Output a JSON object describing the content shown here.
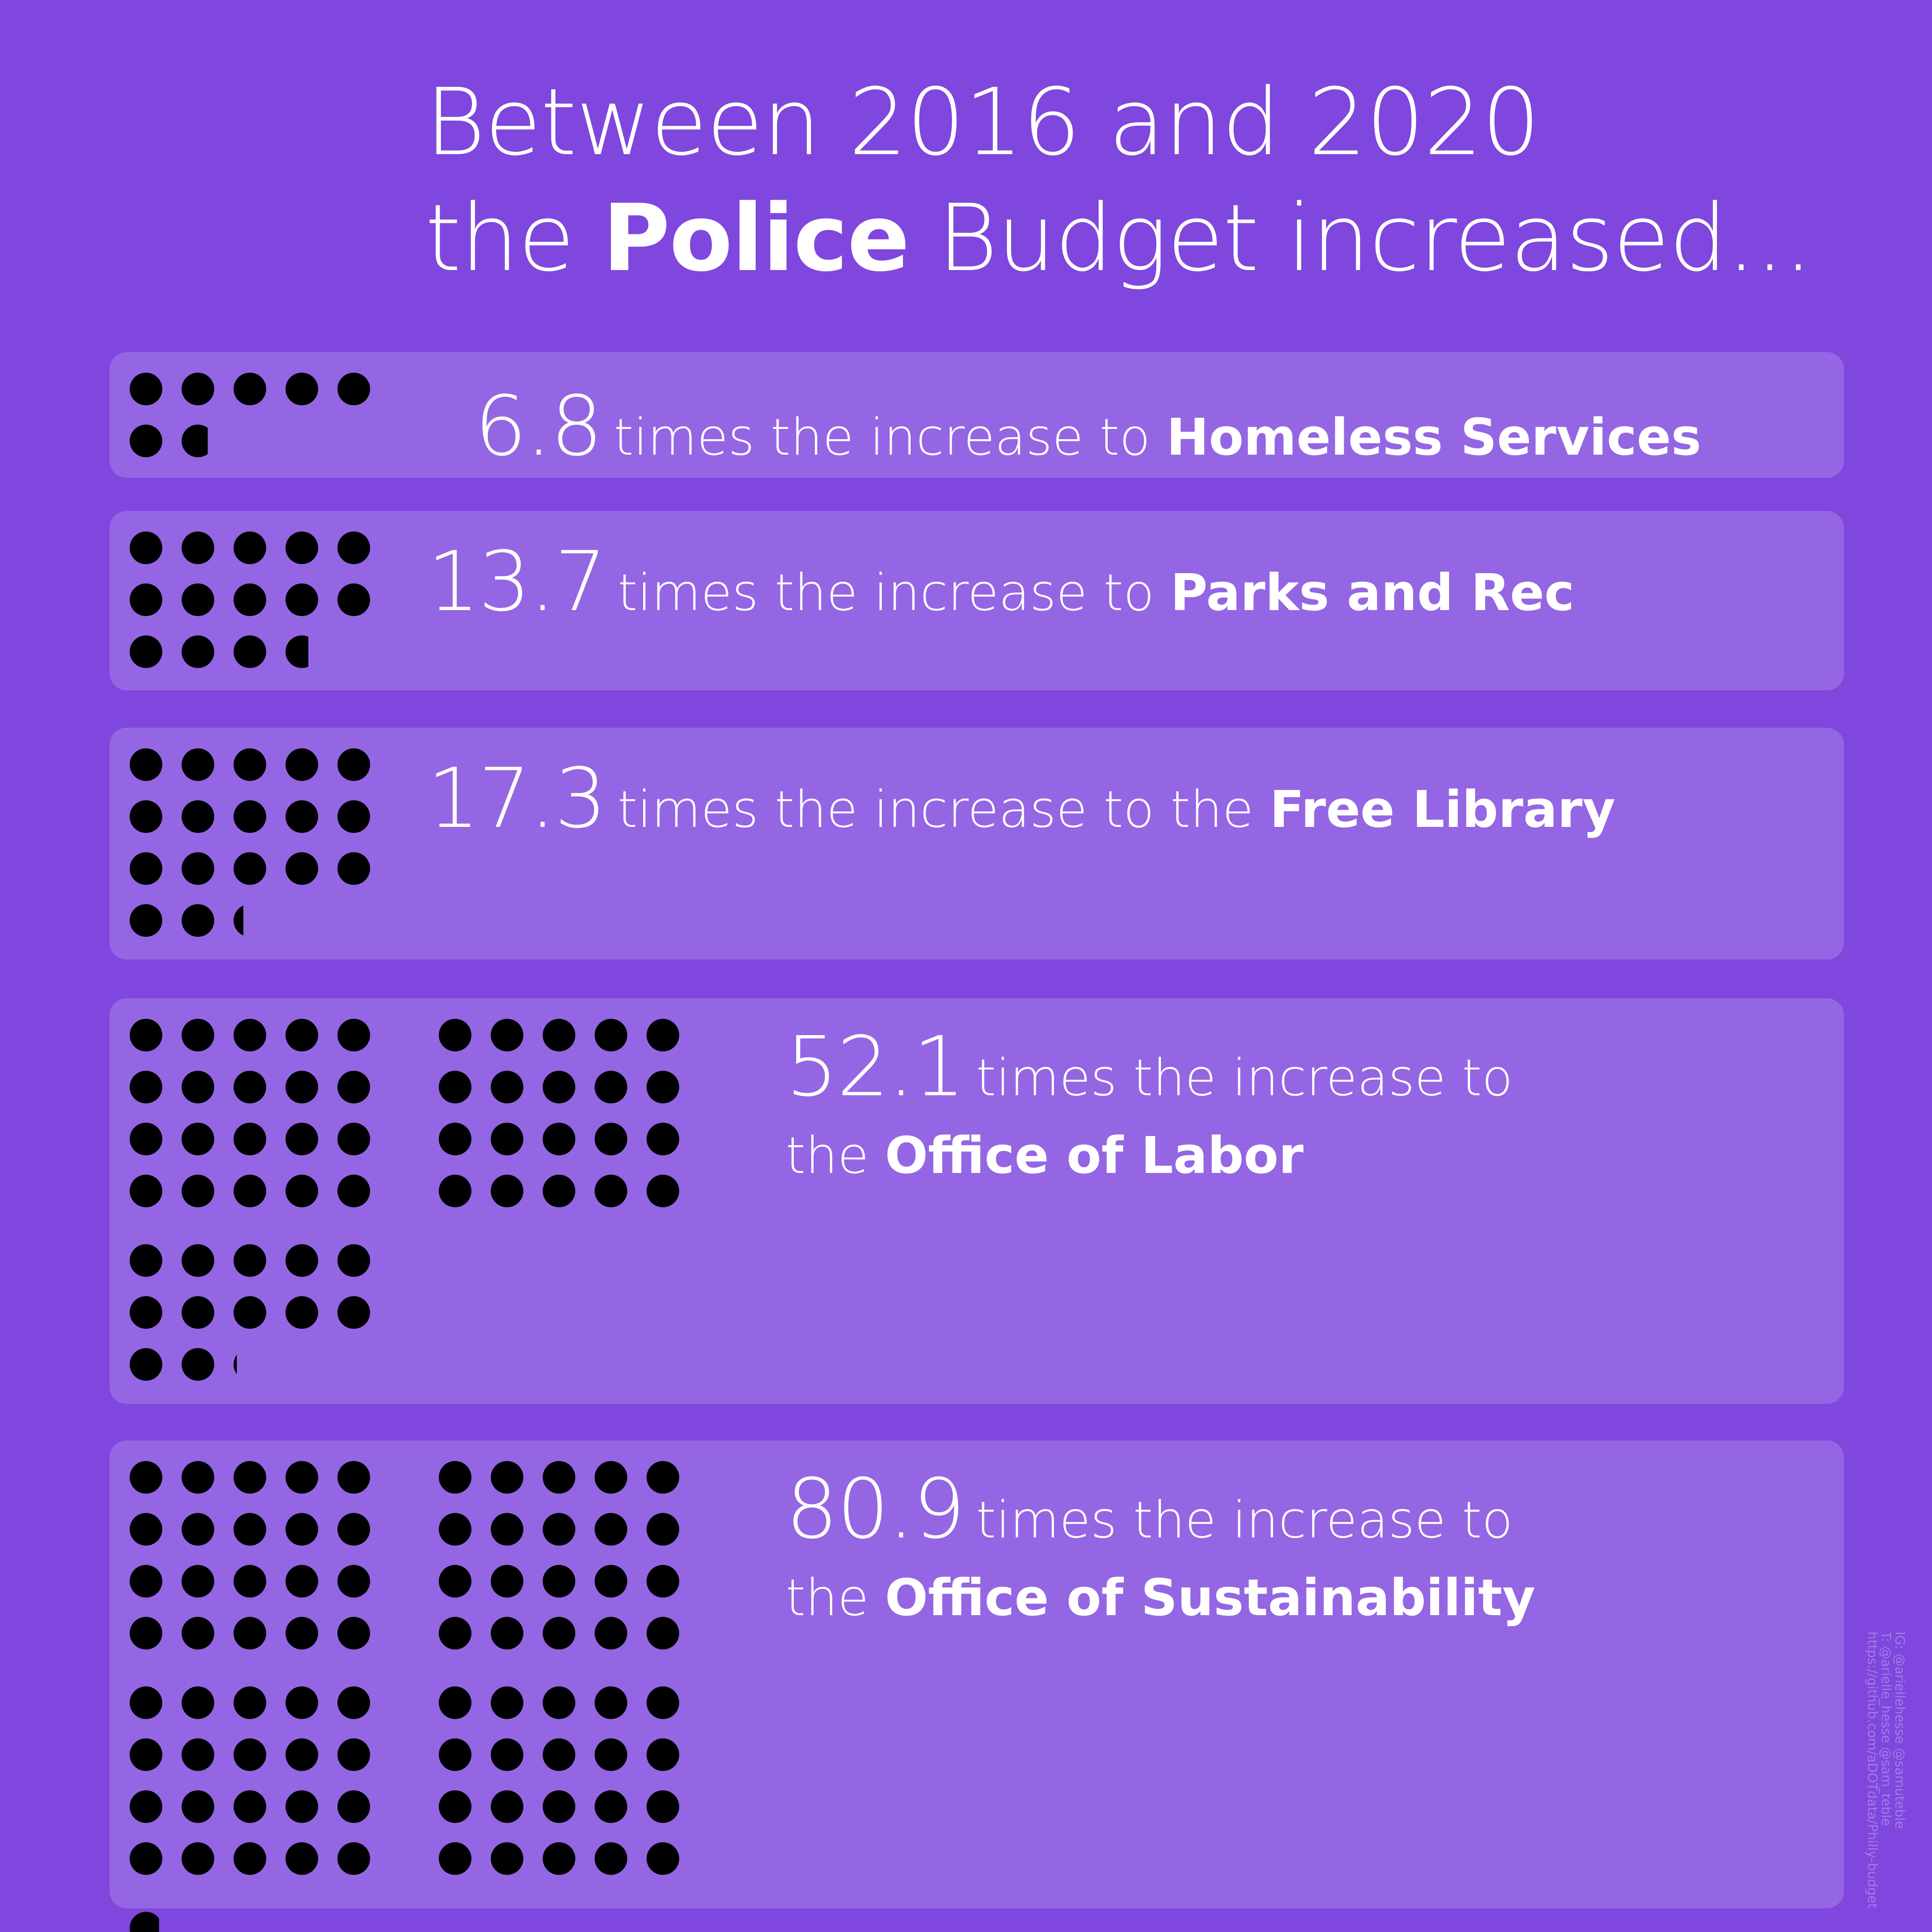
{
  "headline": {
    "line1": "Between 2016 and 2020",
    "line2_pre": "the ",
    "line2_bold": "Police",
    "line2_post": " Budget increased..."
  },
  "chart_data": {
    "type": "pictogram",
    "unit": "one dot = one times the increase",
    "dot_color": "#000000",
    "card_color": "#9466e3",
    "background_color": "#7f47dd",
    "text_color": "#ffffff",
    "rows": [
      {
        "value": 6.8,
        "number": "6.8",
        "text": "times the increase to",
        "text_suffix": "",
        "bold": "Homeless Services"
      },
      {
        "value": 13.7,
        "number": "13.7",
        "text": "times the increase to",
        "text_suffix": "",
        "bold": "Parks and Rec"
      },
      {
        "value": 17.3,
        "number": "17.3",
        "text": "times the increase to the",
        "text_suffix": "",
        "bold": "Free Library"
      },
      {
        "value": 52.1,
        "number": "52.1",
        "text": "times the increase to",
        "text_suffix": "the",
        "bold": "Office of Labor"
      },
      {
        "value": 80.9,
        "number": "80.9",
        "text": "times the increase to",
        "text_suffix": "the",
        "bold": "Office of Sustainability"
      }
    ]
  },
  "credits": {
    "line1": "IG: @ariellehesse @samuteble",
    "line2": "T: @arielle_hesse @sam_teble",
    "line3": "https://github.com/aDOTdata/Philly-budget"
  }
}
